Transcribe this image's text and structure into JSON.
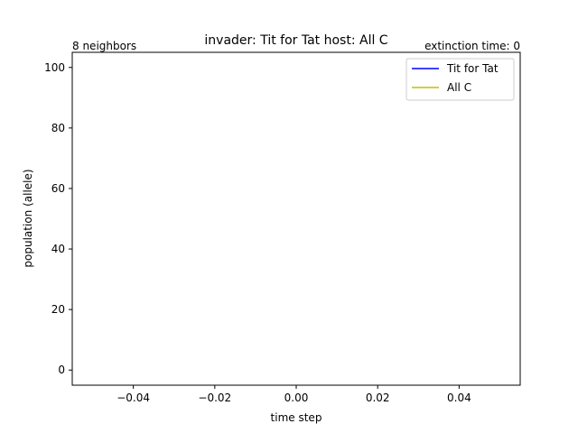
{
  "chart_data": {
    "type": "line",
    "title": "invader: Tit for Tat host: All C",
    "annotation_left": "8 neighbors",
    "annotation_right": "extinction time: 0",
    "xlabel": "time step",
    "ylabel": "population (allele)",
    "xlim": [
      -0.055,
      0.055
    ],
    "ylim": [
      -5,
      105
    ],
    "xticks": [
      -0.04,
      -0.02,
      0.0,
      0.02,
      0.04
    ],
    "xtick_labels": [
      "−0.04",
      "−0.02",
      "0.00",
      "0.02",
      "0.04"
    ],
    "yticks": [
      0,
      20,
      40,
      60,
      80,
      100
    ],
    "ytick_labels": [
      "0",
      "20",
      "40",
      "60",
      "80",
      "100"
    ],
    "grid": false,
    "legend_position": "top-right",
    "series": [
      {
        "name": "Tit for Tat",
        "color": "#0000ff",
        "x": [],
        "y": []
      },
      {
        "name": "All C",
        "color": "#bfbf00",
        "x": [],
        "y": []
      }
    ]
  }
}
